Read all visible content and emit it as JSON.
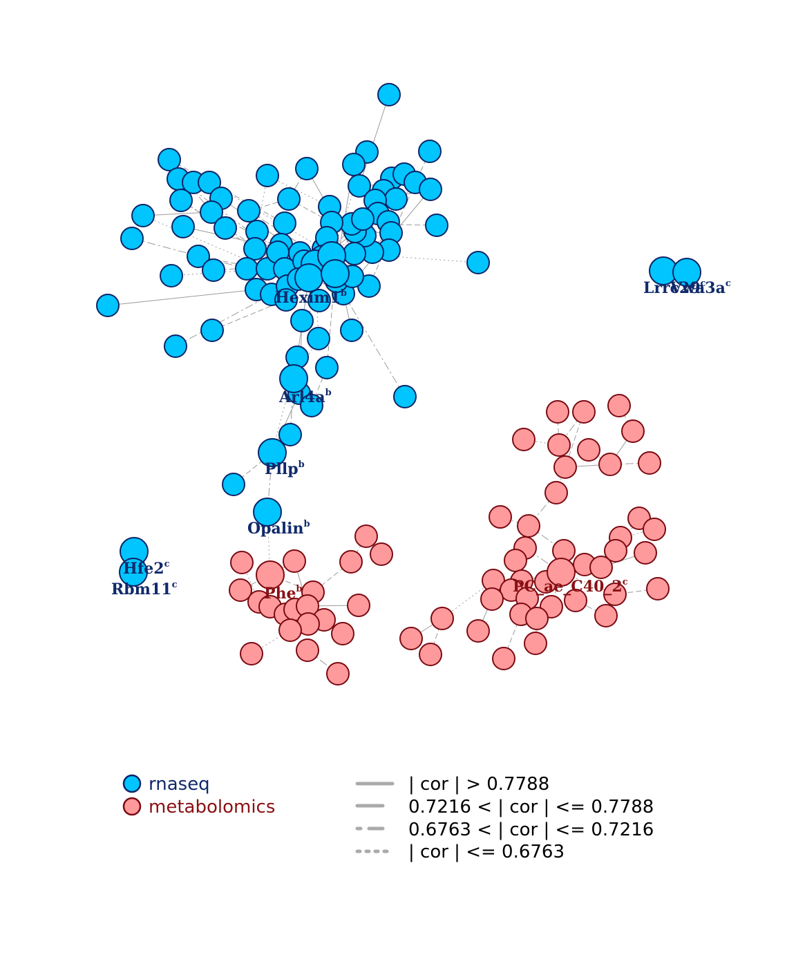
{
  "colors": {
    "rnaseq_fill": "#00c5ff",
    "rnaseq_stroke": "#0b2466",
    "rnaseq_text": "#10296b",
    "metab_fill": "#ff9a9c",
    "metab_stroke": "#7a0a12",
    "metab_text": "#8a1014",
    "edge": "#9a9a9a"
  },
  "labels": [
    {
      "text": "Arl4a",
      "sup": "b",
      "group": "rnaseq"
    },
    {
      "text": "Pllp",
      "sup": "b",
      "group": "rnaseq"
    },
    {
      "text": "Opalin",
      "sup": "b",
      "group": "rnaseq"
    },
    {
      "text": "Hfe2",
      "sup": "c",
      "group": "rnaseq"
    },
    {
      "text": "Rbm11",
      "sup": "c",
      "group": "rnaseq"
    },
    {
      "text": "Lrrc29",
      "sup": "c",
      "group": "rnaseq"
    },
    {
      "text": "Vwa3a",
      "sup": "c",
      "group": "rnaseq"
    },
    {
      "text": "Hexim1",
      "sup": "b",
      "group": "rnaseq"
    },
    {
      "text": "Phe",
      "sup": "b",
      "group": "metabolomics"
    },
    {
      "text": "PC_ae_C40_2",
      "sup": "c",
      "group": "metabolomics"
    }
  ],
  "legend": {
    "groups": [
      {
        "label": "rnaseq",
        "group": "rnaseq"
      },
      {
        "label": "metabolomics",
        "group": "metabolomics"
      }
    ],
    "edges": [
      {
        "label": "| cor | > 0.7788",
        "style": "solid"
      },
      {
        "label": "0.7216 < | cor | <= 0.7788",
        "style": "dash"
      },
      {
        "label": "0.6763 < | cor | <= 0.7216",
        "style": "dashdot"
      },
      {
        "label": "| cor | <= 0.6763",
        "style": "dot"
      }
    ]
  }
}
